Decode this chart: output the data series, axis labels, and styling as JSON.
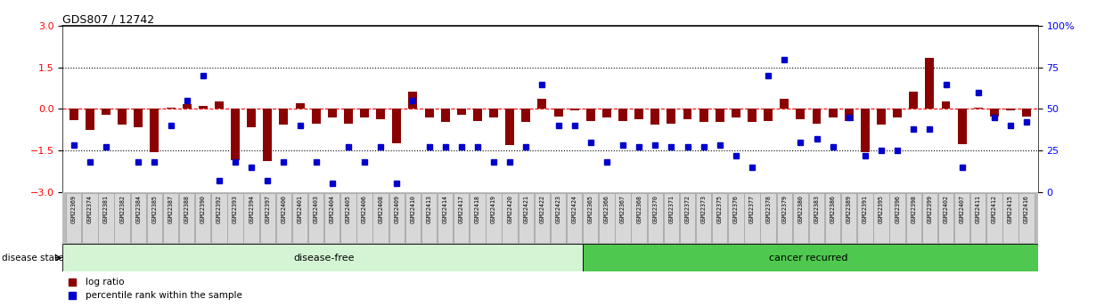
{
  "title": "GDS807 / 12742",
  "samples": [
    "GSM22369",
    "GSM22374",
    "GSM22381",
    "GSM22382",
    "GSM22384",
    "GSM22385",
    "GSM22387",
    "GSM22388",
    "GSM22390",
    "GSM22392",
    "GSM22393",
    "GSM22394",
    "GSM22397",
    "GSM22400",
    "GSM22401",
    "GSM22403",
    "GSM22404",
    "GSM22405",
    "GSM22406",
    "GSM22408",
    "GSM22409",
    "GSM22410",
    "GSM22413",
    "GSM22414",
    "GSM22417",
    "GSM22418",
    "GSM22419",
    "GSM22420",
    "GSM22421",
    "GSM22422",
    "GSM22423",
    "GSM22424",
    "GSM22365",
    "GSM22366",
    "GSM22367",
    "GSM22368",
    "GSM22370",
    "GSM22371",
    "GSM22372",
    "GSM22373",
    "GSM22375",
    "GSM22376",
    "GSM22377",
    "GSM22378",
    "GSM22379",
    "GSM22380",
    "GSM22383",
    "GSM22386",
    "GSM22389",
    "GSM22391",
    "GSM22395",
    "GSM22396",
    "GSM22398",
    "GSM22399",
    "GSM22402",
    "GSM22407",
    "GSM22411",
    "GSM22412",
    "GSM22415",
    "GSM22416"
  ],
  "log_ratio": [
    -0.4,
    -0.75,
    -0.22,
    -0.55,
    -0.65,
    -1.55,
    0.06,
    0.18,
    0.12,
    0.28,
    -1.85,
    -0.65,
    -1.9,
    -0.55,
    0.22,
    -0.52,
    -0.32,
    -0.52,
    -0.32,
    -0.38,
    -1.25,
    0.62,
    -0.32,
    -0.48,
    -0.22,
    -0.42,
    -0.32,
    -1.32,
    -0.48,
    0.38,
    -0.28,
    -0.05,
    -0.42,
    -0.32,
    -0.42,
    -0.38,
    -0.58,
    -0.52,
    -0.38,
    -0.48,
    -0.48,
    -0.32,
    -0.48,
    -0.42,
    0.38,
    -0.38,
    -0.52,
    -0.32,
    -0.42,
    -1.55,
    -0.58,
    -0.32,
    0.62,
    1.85,
    0.28,
    -1.28,
    0.05,
    -0.28,
    -0.05,
    -0.28
  ],
  "percentile": [
    28,
    18,
    27,
    null,
    18,
    18,
    40,
    55,
    70,
    7,
    18,
    15,
    7,
    18,
    40,
    18,
    5,
    27,
    18,
    27,
    5,
    55,
    27,
    27,
    27,
    27,
    18,
    18,
    27,
    65,
    40,
    40,
    30,
    18,
    28,
    27,
    28,
    27,
    27,
    27,
    28,
    22,
    15,
    70,
    80,
    30,
    32,
    27,
    45,
    22,
    25,
    25,
    38,
    38,
    65,
    15,
    60,
    45,
    40,
    42
  ],
  "disease_free_count": 32,
  "bar_color": "#8B0000",
  "dot_color": "#0000CD",
  "ylim_left": [
    -3,
    3
  ],
  "ylim_right": [
    0,
    100
  ],
  "yticks_left": [
    -3,
    -1.5,
    0,
    1.5,
    3
  ],
  "yticks_right": [
    0,
    25,
    50,
    75,
    100
  ],
  "hline_dashed_red": 0,
  "hline_dotted_black": [
    -1.5,
    1.5
  ],
  "disease_free_color": "#d4f5d4",
  "cancer_recurred_color": "#4ec84e",
  "label_disease_free": "disease-free",
  "label_cancer_recurred": "cancer recurred",
  "label_disease_state": "disease state",
  "legend_log_ratio": "log ratio",
  "legend_percentile": "percentile rank within the sample"
}
